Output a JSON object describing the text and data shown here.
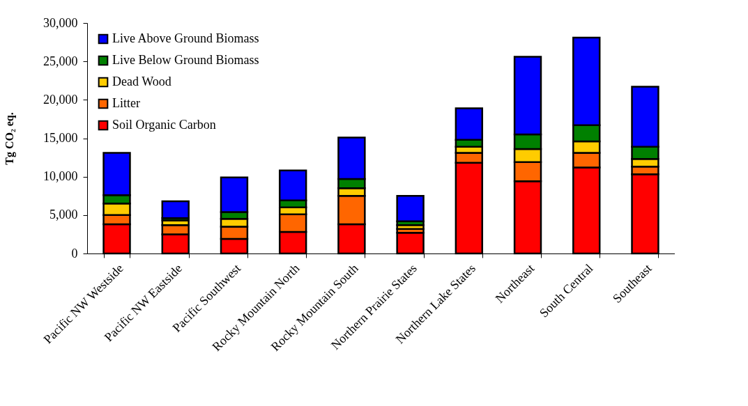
{
  "chart_data": {
    "type": "bar",
    "stacked": true,
    "ylabel": "Tg CO₂ eq.",
    "categories": [
      "Pacific NW Westside",
      "Pacific NW Eastside",
      "Pacific Southwest",
      "Rocky Mountain North",
      "Rocky Mountain South",
      "Northern Prairie States",
      "Northern Lake States",
      "Northeast",
      "South Central",
      "Southeast"
    ],
    "ylim": [
      0,
      30000
    ],
    "yticks": [
      {
        "value": 0,
        "label": "0"
      },
      {
        "value": 5000,
        "label": "5,000"
      },
      {
        "value": 10000,
        "label": "10,000"
      },
      {
        "value": 15000,
        "label": "15,000"
      },
      {
        "value": 20000,
        "label": "20,000"
      },
      {
        "value": 25000,
        "label": "25,000"
      },
      {
        "value": 30000,
        "label": "30,000"
      }
    ],
    "grid": false,
    "legend": "top left",
    "series": [
      {
        "name": "Soil Organic Carbon",
        "color": "#ff0000",
        "values": [
          3800,
          2500,
          1900,
          2800,
          3800,
          2700,
          11800,
          9400,
          11200,
          10300
        ]
      },
      {
        "name": "Litter",
        "color": "#ff6600",
        "values": [
          1200,
          1200,
          1600,
          2300,
          3700,
          500,
          1300,
          2500,
          1900,
          1000
        ]
      },
      {
        "name": "Dead Wood",
        "color": "#ffcc00",
        "values": [
          1500,
          600,
          1000,
          900,
          1000,
          500,
          800,
          1700,
          1500,
          1000
        ]
      },
      {
        "name": "Live Below Ground Biomass",
        "color": "#008000",
        "values": [
          1100,
          300,
          900,
          900,
          1200,
          500,
          900,
          1900,
          2100,
          1600
        ]
      },
      {
        "name": "Live Above Ground Biomass",
        "color": "#0000ff",
        "values": [
          5500,
          2200,
          4500,
          3900,
          5400,
          3300,
          4100,
          10100,
          11400,
          7800
        ]
      }
    ]
  }
}
